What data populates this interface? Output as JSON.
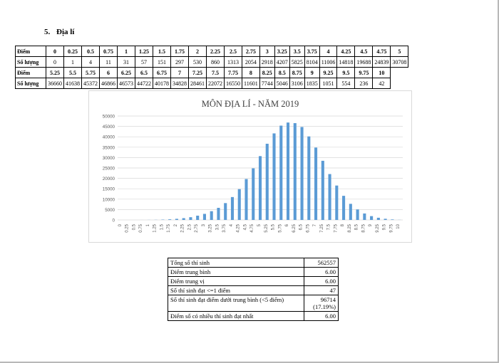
{
  "section": {
    "number": "5.",
    "title": "Địa lí"
  },
  "score_table": {
    "label_score": "Điểm",
    "label_count": "Số lượng",
    "row1_scores": [
      "0",
      "0.25",
      "0.5",
      "0.75",
      "1",
      "1.25",
      "1.5",
      "1.75",
      "2",
      "2.25",
      "2.5",
      "2.75",
      "3",
      "3.25",
      "3.5",
      "3.75",
      "4",
      "4.25",
      "4.5",
      "4.75",
      "5"
    ],
    "row1_counts": [
      "0",
      "1",
      "4",
      "11",
      "31",
      "57",
      "151",
      "297",
      "530",
      "860",
      "1313",
      "2054",
      "2918",
      "4207",
      "5825",
      "8104",
      "11006",
      "14818",
      "19688",
      "24839",
      "30708"
    ],
    "row2_scores": [
      "5.25",
      "5.5",
      "5.75",
      "6",
      "6.25",
      "6.5",
      "6.75",
      "7",
      "7.25",
      "7.5",
      "7.75",
      "8",
      "8.25",
      "8.5",
      "8.75",
      "9",
      "9.25",
      "9.5",
      "9.75",
      "10"
    ],
    "row2_counts": [
      "36660",
      "41638",
      "45372",
      "46866",
      "46573",
      "44722",
      "40178",
      "34828",
      "28461",
      "22072",
      "16550",
      "11601",
      "7744",
      "5046",
      "3106",
      "1835",
      "1051",
      "554",
      "236",
      "42"
    ]
  },
  "chart_data": {
    "type": "bar",
    "title": "MÔN ĐỊA LÍ - NĂM 2019",
    "color": "#5b9bd5",
    "ylim": [
      0,
      50000
    ],
    "yticks": [
      0,
      5000,
      10000,
      15000,
      20000,
      25000,
      30000,
      35000,
      40000,
      45000,
      50000
    ],
    "categories": [
      "0",
      "0.25",
      "0.5",
      "0.75",
      "1",
      "1.25",
      "1.5",
      "1.75",
      "2",
      "2.25",
      "2.5",
      "2.75",
      "3",
      "3.25",
      "3.5",
      "3.75",
      "4",
      "4.25",
      "4.5",
      "4.75",
      "5",
      "5.25",
      "5.5",
      "5.75",
      "6",
      "6.25",
      "6.5",
      "6.75",
      "7",
      "7.25",
      "7.5",
      "7.75",
      "8",
      "8.25",
      "8.5",
      "8.75",
      "9",
      "9.25",
      "9.5",
      "9.75",
      "10"
    ],
    "values": [
      0,
      1,
      4,
      11,
      31,
      57,
      151,
      297,
      530,
      860,
      1313,
      2054,
      2918,
      4207,
      5825,
      8104,
      11006,
      14818,
      19688,
      24839,
      30708,
      36660,
      41638,
      45372,
      46866,
      46573,
      44722,
      40178,
      34828,
      28461,
      22072,
      16550,
      11601,
      7744,
      5046,
      3106,
      1835,
      1051,
      554,
      236,
      42
    ]
  },
  "stats": [
    {
      "label": "Tổng số thí sinh",
      "value": "562557"
    },
    {
      "label": "Điểm trung bình",
      "value": "6.00"
    },
    {
      "label": "Điểm trung vị",
      "value": "6.00"
    },
    {
      "label": "Số thí sinh đạt <=1 điểm",
      "value": "47"
    },
    {
      "label": "Số thí sinh đạt điểm dưới trung bình (<5 điểm)",
      "value": "96714",
      "value2": "(17.19%)"
    },
    {
      "label": "Điểm số có nhiều thí sinh đạt nhất",
      "value": "6.00"
    }
  ]
}
